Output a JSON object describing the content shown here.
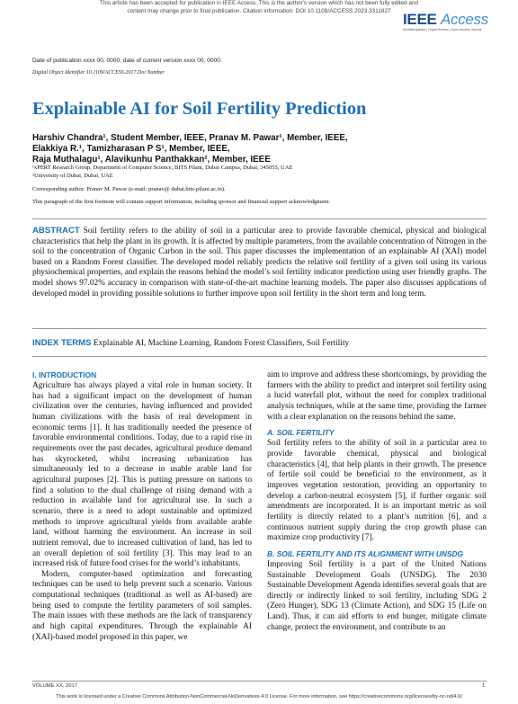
{
  "header": {
    "banner": [
      "This article has been accepted for publication in IEEE Access. This is the author's version which has not been fully edited and",
      "content may change prior to final publication. Citation information: DOI 10.1109/ACCESS.2023.3311827"
    ],
    "logo": [
      "IEEE ",
      "Access"
    ],
    "logo_tagline": "Multidisciplinary | Rapid Review | Open Access Journal",
    "dates": "Date of publication xxxx 00, 0000, date of current version xxxx 00, 0000.",
    "doi": "Digital Object Identifier 10.1109/ACCESS.2017.Doi Number"
  },
  "title": "Explainable AI for Soil Fertility Prediction",
  "authors": [
    "Harshiv Chandra¹, Student Member, IEEE, Pranav M. Pawar¹, Member, IEEE,",
    "Elakkiya R.¹, Tamizharasan P S¹, Member, IEEE,",
    "Raja Muthalagu¹, Alavikunhu Panthakkan², Member, IEEE"
  ],
  "affiliations": [
    "¹xPERT Research Group, Department of Computer Science, BITS Pilani, Dubai Campus, Dubai, 345055, UAE",
    "²University of Dubai, Dubai, UAE"
  ],
  "corresponding": "Corresponding author: Pranav M. Pawar (e-mail: pranav@ dubai.bits-pilani.ac.in).",
  "funding_note": "This paragraph of the first footnote will contain support information, including sponsor and financial support acknowledgment.",
  "abstract": {
    "label": "ABSTRACT",
    "text": "Soil fertility refers to the ability of soil in a particular area to provide favorable chemical, physical and biological characteristics that help the plant in its growth. It is affected by multiple parameters, from the available concentration of Nitrogen in the soil to the concentration of Organic Carbon in the soil. This paper discusses the implementation of an explainable AI (XAI) model based on a Random Forest classifier. The developed model reliably predicts the relative soil fertility of a given soil using its various physiochemical properties, and explain the reasons behind the model’s soil fertility indicator prediction using user friendly graphs. The model shows 97.02% accuracy in comparison with state-of-the-art machine learning models. The paper also discusses applications of developed model in providing possible solutions to further improve upon soil fertility in the short term and long term."
  },
  "index_terms": {
    "label": "INDEX TERMS",
    "text": "Explainable AI, Machine Learning, Random Forest Classifiers, Soil Fertility"
  },
  "body": {
    "left": [
      "I. INTRODUCTION",
      "Agriculture has always played a vital role in human society. It has had a significant impact on the development of human civilization over the centuries, having influenced and provided human civilizations with the basis of real development in economic terms [1]. It has traditionally needed the presence of favorable environmental conditions. Today, due to a rapid rise in requirements over the past decades, agricultural produce demand has skyrocketed, whilst increasing urbanization has simultaneously led to a decrease in usable arable land for agricultural purposes [2]. This is putting pressure on nations to find a solution to the dual challenge of rising demand with a reduction in available land for agricultural use. In such a scenario, there is a need to adopt sustainable and optimized methods to improve agricultural yields from available arable land, without harming the environment. An increase in soil nutrient removal, due to increased cultivation of land, has led to an overall depletion of soil fertility [3]. This may lead to an increased risk of future food crises for the world’s inhabitants.",
      "Modern, computer-based optimization and forecasting techniques can be used to help prevent such a scenario. Various computational techniques (traditional as well as AI-based) are being used to compute the fertility parameters of soil samples. The main issues with these methods are the lack of transparency and high capital expenditures. Through the explainable AI (XAI)-based model proposed in this paper, we"
    ],
    "right": [
      "aim to improve and address these shortcomings, by providing the farmers with the ability to predict and interpret soil fertility using a lucid waterfall plot, without the need for complex traditional analysis techniques, while at the same time, providing the farmer with a clear explanation on the reasons behind the same.",
      "A.   SOIL FERTILITY",
      "Soil fertility refers to the ability of soil in a particular area to provide favorable chemical, physical and biological characteristics [4], that help plants in their growth. The presence of fertile soil could be beneficial to the environment, as it improves vegetation restoration, providing an opportunity to develop a carbon-neutral ecosystem [5], if further organic soil amendments are incorporated. It is an important metric as soil fertility is directly related to a plant’s nutrition [6], and a continuous nutrient supply during the crop growth phase can maximize crop productivity [7].",
      "B. SOIL FERTILITY AND ITS ALIGNMENT WITH UNSDG",
      "Improving Soil fertility is a part of the United Nations Sustainable Development Goals (UNSDG). The 2030 Sustainable Development Agenda identifies several goals that are directly or indirectly linked to soil fertility, including SDG 2 (Zero Hunger), SDG 13 (Climate Action), and SDG 15 (Life on Land). Thus, it can aid efforts to end hunger, mitigate climate change, protect the environment, and contribute to an"
    ]
  },
  "footer": {
    "volume": "VOLUME XX, 2017",
    "page": "1",
    "license": "This work is licensed under a Creative Commons Attribution-NonCommercial-NoDerivatives 4.0 License. For more information, see https://creativecommons.org/licenses/by-nc-nd/4.0/"
  }
}
